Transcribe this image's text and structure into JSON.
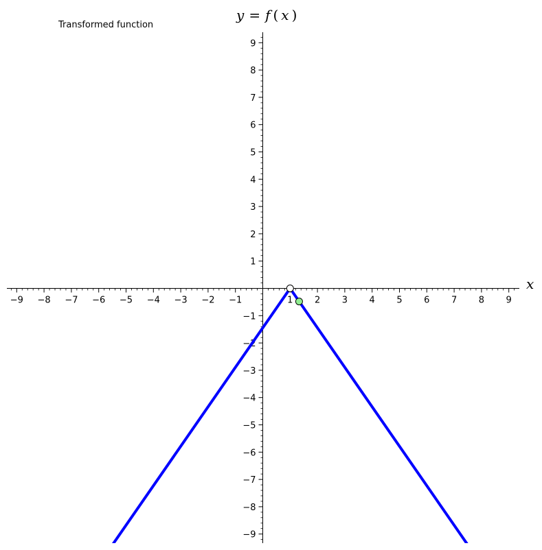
{
  "chart_data": {
    "type": "line",
    "title": "Transformed function",
    "xlabel": "x",
    "ylabel_parts": {
      "y": "y",
      "eq": "=",
      "f": "f",
      "open": "(",
      "x": "x",
      "close": ")"
    },
    "xlim": [
      -9.4,
      9.4
    ],
    "ylim": [
      -9.4,
      9.3
    ],
    "xticks": [
      -9,
      -8,
      -7,
      -6,
      -5,
      -4,
      -3,
      -2,
      -1,
      1,
      2,
      3,
      4,
      5,
      6,
      7,
      8,
      9
    ],
    "xtick_labels": [
      "−9",
      "−8",
      "−7",
      "−6",
      "−5",
      "−4",
      "−3",
      "−2",
      "−1",
      "1",
      "2",
      "3",
      "4",
      "5",
      "6",
      "7",
      "8",
      "9"
    ],
    "yticks": [
      9,
      8,
      7,
      6,
      5,
      4,
      3,
      2,
      1,
      -1,
      -2,
      -3,
      -4,
      -5,
      -6,
      -7,
      -8,
      -9
    ],
    "ytick_labels": [
      "9",
      "8",
      "7",
      "6",
      "5",
      "4",
      "3",
      "2",
      "1",
      "−1",
      "−2",
      "−3",
      "−4",
      "−5",
      "−6",
      "−7",
      "−8",
      "−9"
    ],
    "minor_tick_step": 0.2,
    "series": [
      {
        "points": [
          [
            -5.5,
            -9.4
          ],
          [
            1,
            0
          ],
          [
            7.5,
            -9.4
          ]
        ],
        "color": "#0000ff"
      }
    ],
    "markers": [
      {
        "x": 1,
        "y": 0,
        "fill": "#ffffff",
        "stroke": "#000000"
      },
      {
        "x": 1.33,
        "y": -0.48,
        "fill": "#90ee90",
        "stroke": "#000000"
      }
    ]
  }
}
